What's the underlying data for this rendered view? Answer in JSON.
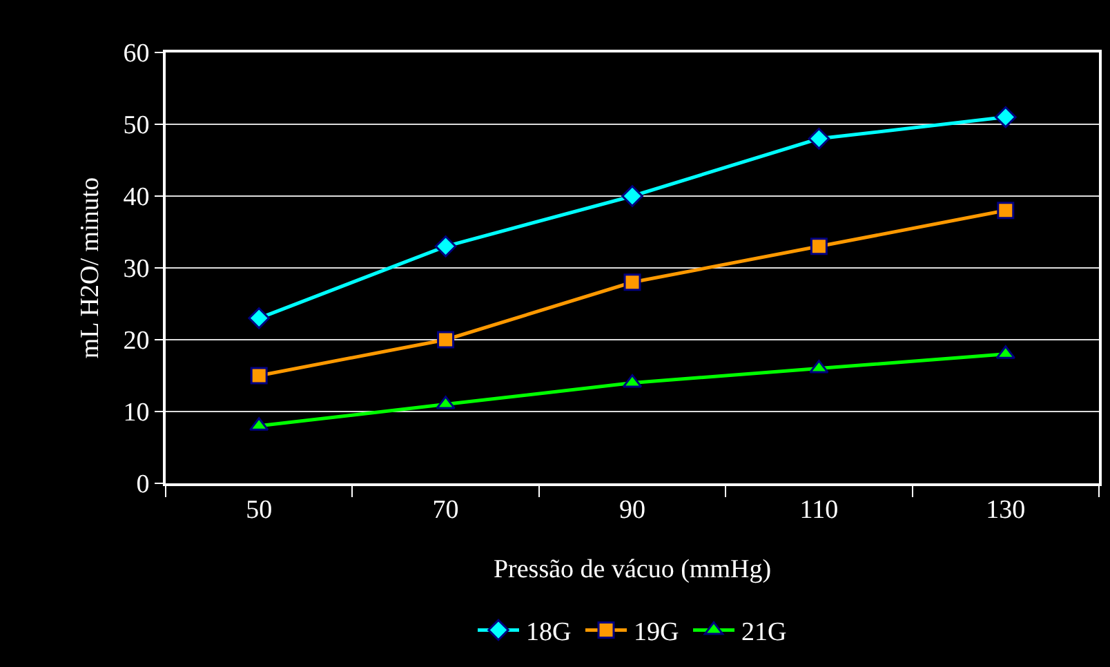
{
  "chart_data": {
    "type": "line",
    "xlabel": "Pressão de vácuo (mmHg)",
    "ylabel": "mL H2O/ minuto",
    "categories": [
      "50",
      "70",
      "90",
      "110",
      "130"
    ],
    "series": [
      {
        "name": "18G",
        "color": "#00ffff",
        "marker": "diamond",
        "values": [
          23,
          33,
          40,
          48,
          51
        ]
      },
      {
        "name": "19G",
        "color": "#ff9900",
        "marker": "square",
        "values": [
          15,
          20,
          28,
          33,
          38
        ]
      },
      {
        "name": "21G",
        "color": "#00ff00",
        "marker": "triangle",
        "values": [
          8,
          11,
          14,
          16,
          18
        ]
      }
    ],
    "ylim": [
      0,
      60
    ],
    "yticks": [
      0,
      10,
      20,
      30,
      40,
      50,
      60
    ],
    "grid": "y",
    "legend": "bottom",
    "line_style": "solid"
  }
}
